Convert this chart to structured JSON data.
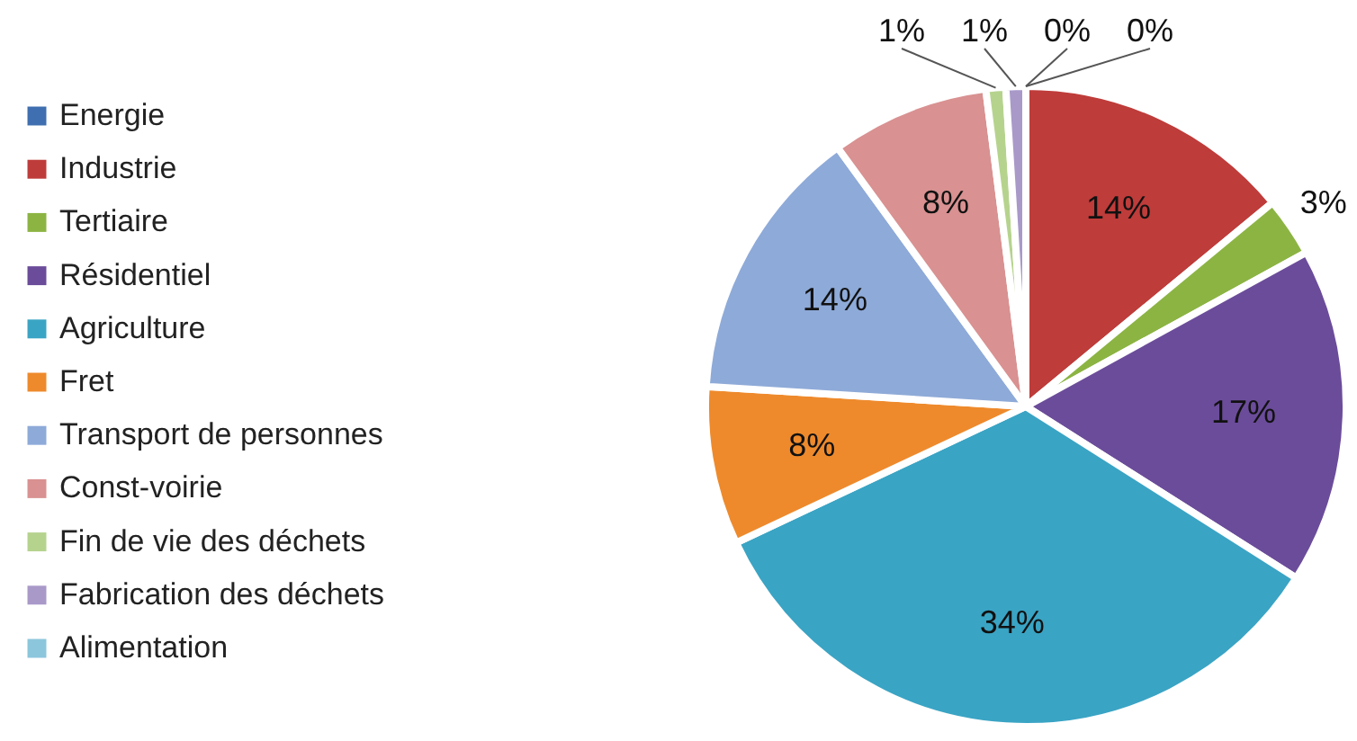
{
  "chart_data": {
    "type": "pie",
    "categories": [
      "Energie",
      "Industrie",
      "Tertiaire",
      "Résidentiel",
      "Agriculture",
      "Fret",
      "Transport de personnes",
      "Const-voirie",
      "Fin de vie des déchets",
      "Fabrication des déchets",
      "Alimentation"
    ],
    "values": [
      0,
      14,
      3,
      17,
      34,
      8,
      14,
      8,
      1,
      1,
      0
    ],
    "value_labels": [
      "0%",
      "14%",
      "3%",
      "17%",
      "34%",
      "8%",
      "14%",
      "8%",
      "1%",
      "1%",
      "0%"
    ],
    "colors": [
      "#3f6fb0",
      "#be3c3a",
      "#8cb443",
      "#6b4c9a",
      "#3aa4c4",
      "#ee8a2c",
      "#8eaad8",
      "#d99191",
      "#b6d38e",
      "#a999c9",
      "#8cc6dc"
    ],
    "legend": "left"
  }
}
